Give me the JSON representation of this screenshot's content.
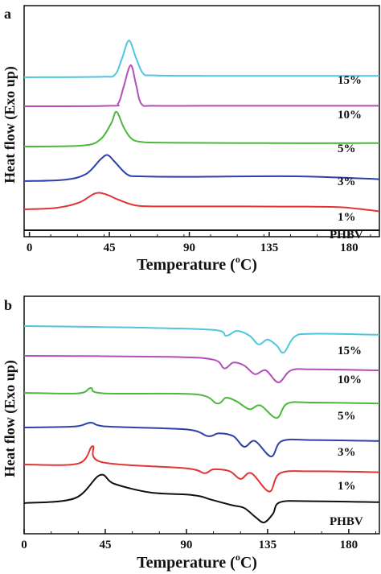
{
  "chart_data": [
    {
      "panel": "a",
      "type": "line",
      "xlabel": "Temperature (°C)",
      "ylabel": "Heat flow (Exo up)",
      "xlim": [
        -3,
        197
      ],
      "xticks": [
        0,
        45,
        90,
        135,
        180
      ],
      "grid": false,
      "series": [
        {
          "name": "15%",
          "color": "#4ec6e0",
          "baseline": 0.0,
          "points": [
            [
              -3,
              0
            ],
            [
              40,
              1
            ],
            [
              48,
              5
            ],
            [
              52,
              38
            ],
            [
              56,
              76
            ],
            [
              60,
              40
            ],
            [
              64,
              8
            ],
            [
              70,
              4
            ],
            [
              100,
              3
            ],
            [
              150,
              3
            ],
            [
              197,
              3
            ]
          ]
        },
        {
          "name": "10%",
          "color": "#b24fb8",
          "baseline": 0.0,
          "points": [
            [
              -3,
              0
            ],
            [
              45,
              1
            ],
            [
              50,
              6
            ],
            [
              53,
              40
            ],
            [
              57,
              85
            ],
            [
              60,
              45
            ],
            [
              63,
              5
            ],
            [
              70,
              1
            ],
            [
              100,
              1
            ],
            [
              150,
              1
            ],
            [
              197,
              1
            ]
          ]
        },
        {
          "name": "5%",
          "color": "#4cb83c",
          "baseline": 0.0,
          "points": [
            [
              -3,
              0
            ],
            [
              30,
              2
            ],
            [
              40,
              15
            ],
            [
              46,
              48
            ],
            [
              49,
              72
            ],
            [
              53,
              40
            ],
            [
              57,
              18
            ],
            [
              62,
              10
            ],
            [
              75,
              8
            ],
            [
              130,
              7
            ],
            [
              197,
              7
            ]
          ]
        },
        {
          "name": "3%",
          "color": "#2e3fa8",
          "baseline": 0.0,
          "points": [
            [
              -3,
              0
            ],
            [
              20,
              3
            ],
            [
              32,
              15
            ],
            [
              40,
              45
            ],
            [
              44,
              54
            ],
            [
              48,
              40
            ],
            [
              55,
              14
            ],
            [
              62,
              10
            ],
            [
              90,
              9
            ],
            [
              150,
              10
            ],
            [
              197,
              4
            ]
          ]
        },
        {
          "name": "1%",
          "color": "#e23434",
          "baseline": 0.0,
          "points": [
            [
              -3,
              0
            ],
            [
              15,
              3
            ],
            [
              28,
              14
            ],
            [
              37,
              33
            ],
            [
              43,
              31
            ],
            [
              50,
              20
            ],
            [
              60,
              8
            ],
            [
              75,
              6
            ],
            [
              120,
              6
            ],
            [
              170,
              5
            ],
            [
              185,
              1
            ],
            [
              197,
              -4
            ]
          ]
        },
        {
          "name": "PHBV",
          "color": "#111111",
          "baseline": 0.0,
          "points": [
            [
              -3,
              0
            ],
            [
              197,
              0
            ]
          ]
        }
      ]
    },
    {
      "panel": "b",
      "type": "line",
      "xlabel": "Temperature (°C)",
      "ylabel": "Heat flow (Exo up)",
      "xlim": [
        0,
        197
      ],
      "xticks": [
        0,
        45,
        90,
        135,
        180
      ],
      "grid": false,
      "series": [
        {
          "name": "15%",
          "color": "#4ec6e0",
          "points": [
            [
              0,
              0
            ],
            [
              60,
              -3
            ],
            [
              105,
              -8
            ],
            [
              112,
              -20
            ],
            [
              118,
              -10
            ],
            [
              125,
              -20
            ],
            [
              130,
              -38
            ],
            [
              135,
              -28
            ],
            [
              140,
              -40
            ],
            [
              144,
              -55
            ],
            [
              150,
              -22
            ],
            [
              160,
              -16
            ],
            [
              197,
              -18
            ]
          ]
        },
        {
          "name": "10%",
          "color": "#b24fb8",
          "points": [
            [
              0,
              0
            ],
            [
              80,
              -2
            ],
            [
              105,
              -8
            ],
            [
              111,
              -26
            ],
            [
              116,
              -14
            ],
            [
              122,
              -20
            ],
            [
              128,
              -38
            ],
            [
              134,
              -30
            ],
            [
              141,
              -55
            ],
            [
              148,
              -30
            ],
            [
              160,
              -28
            ],
            [
              197,
              -30
            ]
          ]
        },
        {
          "name": "5%",
          "color": "#4cb83c",
          "points": [
            [
              0,
              0
            ],
            [
              30,
              -1
            ],
            [
              37,
              10
            ],
            [
              44,
              -1
            ],
            [
              95,
              -3
            ],
            [
              107,
              -22
            ],
            [
              112,
              -10
            ],
            [
              118,
              -18
            ],
            [
              125,
              -34
            ],
            [
              131,
              -26
            ],
            [
              140,
              -52
            ],
            [
              146,
              -22
            ],
            [
              160,
              -20
            ],
            [
              197,
              -22
            ]
          ]
        },
        {
          "name": "3%",
          "color": "#2e3fa8",
          "points": [
            [
              0,
              0
            ],
            [
              28,
              2
            ],
            [
              37,
              10
            ],
            [
              46,
              2
            ],
            [
              90,
              -4
            ],
            [
              102,
              -18
            ],
            [
              108,
              -12
            ],
            [
              116,
              -18
            ],
            [
              122,
              -40
            ],
            [
              128,
              -28
            ],
            [
              137,
              -60
            ],
            [
              143,
              -28
            ],
            [
              160,
              -26
            ],
            [
              197,
              -28
            ]
          ]
        },
        {
          "name": "1%",
          "color": "#e23434",
          "points": [
            [
              0,
              0
            ],
            [
              30,
              2
            ],
            [
              38,
              38
            ],
            [
              43,
              5
            ],
            [
              90,
              -8
            ],
            [
              100,
              -18
            ],
            [
              105,
              -10
            ],
            [
              114,
              -14
            ],
            [
              120,
              -30
            ],
            [
              126,
              -18
            ],
            [
              136,
              -56
            ],
            [
              142,
              -18
            ],
            [
              160,
              -14
            ],
            [
              197,
              -16
            ]
          ]
        },
        {
          "name": "PHBV",
          "color": "#111111",
          "points": [
            [
              0,
              0
            ],
            [
              28,
              10
            ],
            [
              42,
              58
            ],
            [
              50,
              40
            ],
            [
              70,
              22
            ],
            [
              90,
              18
            ],
            [
              98,
              14
            ],
            [
              103,
              8
            ],
            [
              115,
              -4
            ],
            [
              122,
              -10
            ],
            [
              128,
              -28
            ],
            [
              133,
              -40
            ],
            [
              138,
              -22
            ],
            [
              142,
              2
            ],
            [
              160,
              4
            ],
            [
              197,
              2
            ]
          ]
        }
      ]
    }
  ],
  "panel_a": {
    "panel_label": "a",
    "ylabel": "Heat flow (Exo up)",
    "xlabel_main": "Temperature (",
    "xlabel_sup": "o",
    "xlabel_end": "C)",
    "tick_labels": [
      "0",
      "45",
      "90",
      "135",
      "180"
    ],
    "series_labels": [
      "15%",
      "10%",
      "5%",
      "3%",
      "1%",
      "PHBV"
    ]
  },
  "panel_b": {
    "panel_label": "b",
    "ylabel": "Heat flow (Exo up)",
    "xlabel_main": "Temperature (",
    "xlabel_sup": "o",
    "xlabel_end": "C)",
    "tick_labels": [
      "0",
      "45",
      "90",
      "135",
      "180"
    ],
    "series_labels": [
      "15%",
      "10%",
      "5%",
      "3%",
      "1%",
      "PHBV"
    ]
  }
}
